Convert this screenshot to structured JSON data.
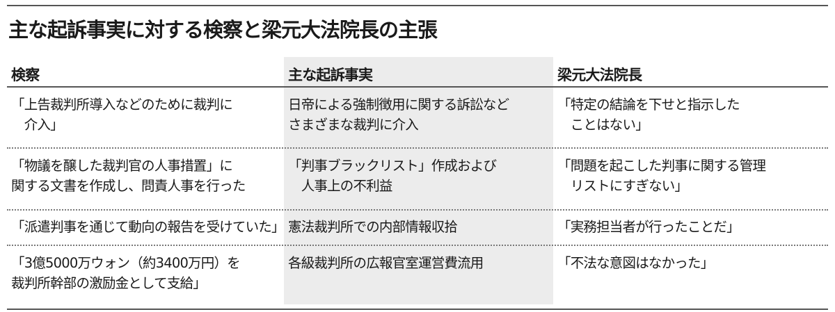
{
  "title": "主な起訴事実に対する検察と梁元大法院長の主張",
  "headers": [
    "検察",
    "主な起訴事実",
    "梁元大法院長"
  ],
  "rows": [
    {
      "prosecution": [
        "「上告裁判所導入などのために裁判に",
        "　介入」"
      ],
      "charge": [
        "日帝による強制徴用に関する訴訟など",
        "さまざまな裁判に介入"
      ],
      "defense": [
        "「特定の結論を下せと指示した",
        "　ことはない」"
      ]
    },
    {
      "prosecution": [
        "「物議を醸した裁判官の人事措置」に",
        "関する文書を作成し、問責人事を行った"
      ],
      "charge": [
        "「判事ブラックリスト」作成および",
        "　人事上の不利益"
      ],
      "defense": [
        "「問題を起こした判事に関する管理",
        "　リストにすぎない」"
      ]
    },
    {
      "prosecution": [
        "「派遣判事を通じて動向の報告を受けていた」"
      ],
      "charge": [
        "憲法裁判所での内部情報収拾"
      ],
      "defense": [
        "「実務担当者が行ったことだ」"
      ]
    },
    {
      "prosecution": [
        "「3億5000万ウォン（約3400万円）を",
        "裁判所幹部の激励金として支給」"
      ],
      "charge": [
        "各級裁判所の広報官室運営費流用"
      ],
      "defense": [
        "「不法な意図はなかった」"
      ]
    }
  ]
}
